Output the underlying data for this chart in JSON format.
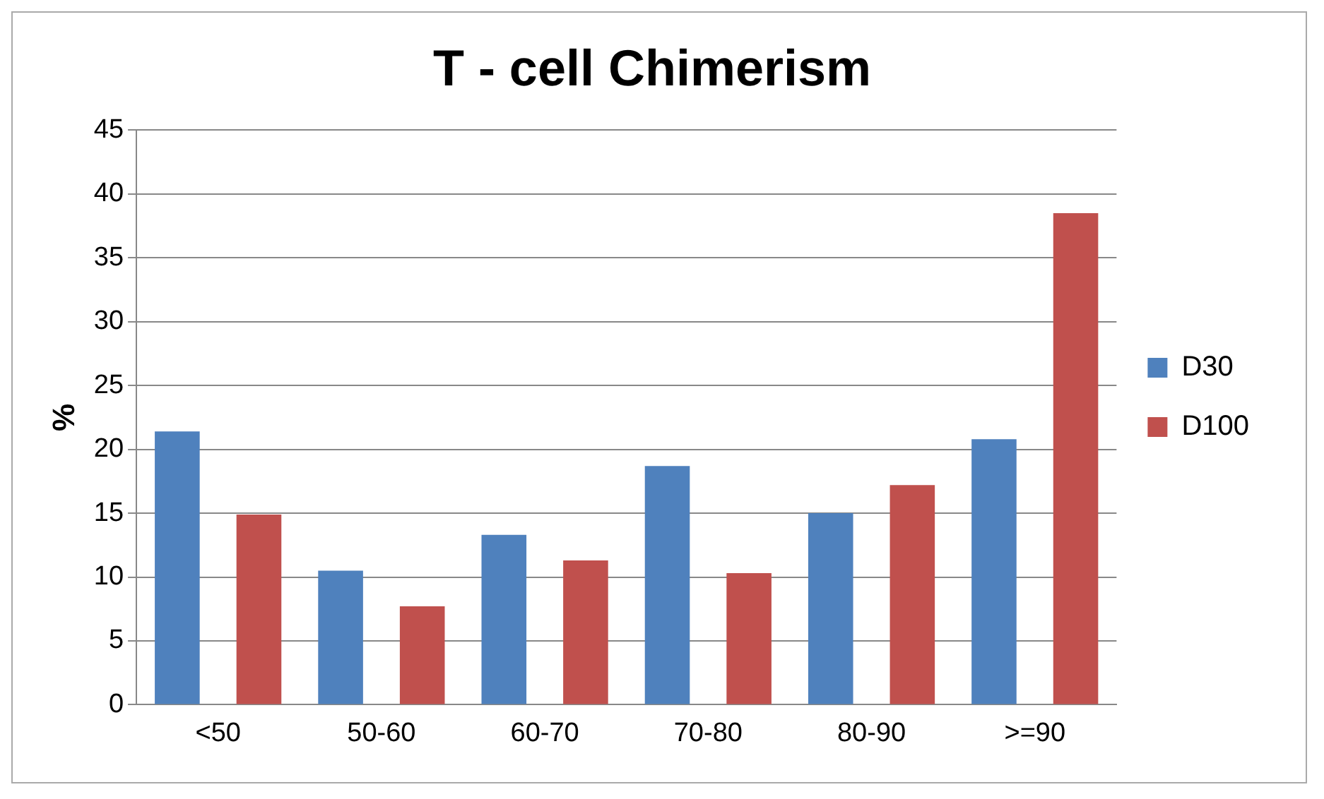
{
  "chart_data": {
    "type": "bar",
    "title": "T - cell Chimerism",
    "ylabel": "%",
    "categories": [
      "<50",
      "50-60",
      "60-70",
      "70-80",
      "80-90",
      ">=90"
    ],
    "series": [
      {
        "name": "D30",
        "color": "#4f81bd",
        "values": [
          21.4,
          10.5,
          13.3,
          18.7,
          15.0,
          20.8
        ]
      },
      {
        "name": "D100",
        "color": "#c0504d",
        "values": [
          14.9,
          7.7,
          11.3,
          10.3,
          17.2,
          38.5
        ]
      }
    ],
    "ylim": [
      0,
      45
    ],
    "yticks": [
      0,
      5,
      10,
      15,
      20,
      25,
      30,
      35,
      40,
      45
    ],
    "grid": "y",
    "legend": "right"
  }
}
